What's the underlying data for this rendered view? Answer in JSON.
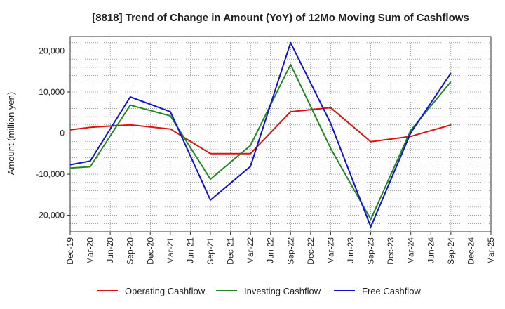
{
  "chart_data": {
    "type": "line",
    "title": "[8818]  Trend of Change in Amount (YoY) of 12Mo Moving Sum of Cashflows",
    "xlabel": "",
    "ylabel": "Amount (million yen)",
    "ylim": [
      -24000,
      23500
    ],
    "yticks": [
      20000,
      10000,
      0,
      -10000,
      -20000
    ],
    "ytick_labels": [
      "20,000",
      "10,000",
      "0",
      "-10,000",
      "-20,000"
    ],
    "categories": [
      "Dec-19",
      "Mar-20",
      "Jun-20",
      "Sep-20",
      "Dec-20",
      "Mar-21",
      "Jun-21",
      "Sep-21",
      "Dec-21",
      "Mar-22",
      "Jun-22",
      "Sep-22",
      "Dec-22",
      "Mar-23",
      "Jun-23",
      "Sep-23",
      "Dec-23",
      "Mar-24",
      "Jun-24",
      "Sep-24",
      "Dec-24",
      "Mar-25"
    ],
    "grid": true,
    "legend_position": "bottom",
    "series": [
      {
        "name": "Operating Cashflow",
        "color": "#dd1111",
        "values": [
          800,
          1400,
          null,
          2000,
          null,
          1000,
          null,
          -5000,
          null,
          -5000,
          null,
          5200,
          null,
          6200,
          null,
          -2100,
          null,
          -800,
          null,
          2000,
          null,
          null
        ]
      },
      {
        "name": "Investing Cashflow",
        "color": "#228822",
        "values": [
          -8500,
          -8200,
          null,
          6800,
          null,
          4200,
          null,
          -11200,
          null,
          -3000,
          null,
          16700,
          null,
          -3700,
          null,
          -21000,
          null,
          700,
          null,
          12500,
          null,
          null
        ]
      },
      {
        "name": "Free Cashflow",
        "color": "#1111dd",
        "values": [
          -7700,
          -6800,
          null,
          8800,
          null,
          5200,
          null,
          -16300,
          null,
          -8100,
          null,
          22000,
          null,
          2400,
          null,
          -22800,
          null,
          100,
          null,
          14600,
          null,
          null
        ]
      }
    ]
  }
}
